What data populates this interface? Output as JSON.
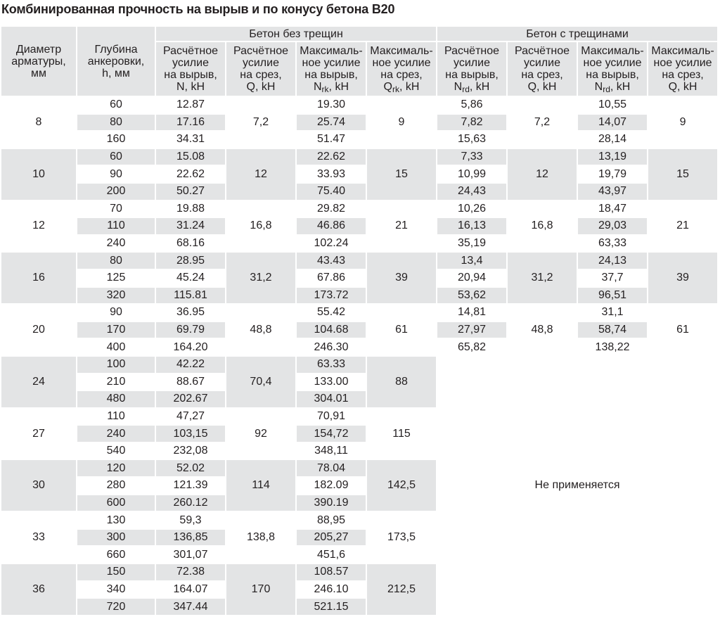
{
  "title": "Комбинированная прочность на вырыв и по конусу бетона B20",
  "group_headers": {
    "no_cracks": "Бетон без трещин",
    "cracks": "Бетон с трещинами"
  },
  "columns": [
    {
      "lines": [
        "Диаметр",
        "арматуры,",
        "мм"
      ]
    },
    {
      "lines": [
        "Глубина",
        "анкеровки,",
        "h, мм"
      ]
    },
    {
      "lines": [
        "Расчётное",
        "усилие",
        "на вырыв,"
      ],
      "sym": "N",
      "sub": "",
      "unit": ", kH"
    },
    {
      "lines": [
        "Расчётное",
        "усилие",
        "на срез,"
      ],
      "sym": "Q",
      "sub": "",
      "unit": ", kH"
    },
    {
      "lines": [
        "Максималь-",
        "ное усилие",
        "на вырыв,"
      ],
      "sym": "N",
      "sub": "rk",
      "unit": ", kH"
    },
    {
      "lines": [
        "Максималь-",
        "ное усилие",
        "на срез,"
      ],
      "sym": "Q",
      "sub": "rk",
      "unit": ", kH"
    },
    {
      "lines": [
        "Расчётное",
        "усилие",
        "на вырыв,"
      ],
      "sym": "N",
      "sub": "rd",
      "unit": ", kH"
    },
    {
      "lines": [
        "Расчётное",
        "усилие",
        "на срез,"
      ],
      "sym": "Q",
      "sub": "",
      "unit": ", kH"
    },
    {
      "lines": [
        "Максималь-",
        "ное усилие",
        "на вырыв,"
      ],
      "sym": "N",
      "sub": "rd",
      "unit": ", kH"
    },
    {
      "lines": [
        "Максималь-",
        "ное усилие",
        "на срез,"
      ],
      "sym": "Q",
      "sub": "",
      "unit": ", kH"
    }
  ],
  "not_applicable": "Не применяется",
  "groups": [
    {
      "d": "8",
      "Q": "7,2",
      "Qrk": "9",
      "Qc": "7,2",
      "Qcm": "9",
      "rows": [
        {
          "h": "60",
          "N": "12.87",
          "Nrk": "19.30",
          "Nrd": "5,86",
          "Nrdm": "10,55"
        },
        {
          "h": "80",
          "N": "17.16",
          "Nrk": "25.74",
          "Nrd": "7,82",
          "Nrdm": "14,07"
        },
        {
          "h": "160",
          "N": "34.31",
          "Nrk": "51.47",
          "Nrd": "15,63",
          "Nrdm": "28,14"
        }
      ]
    },
    {
      "d": "10",
      "Q": "12",
      "Qrk": "15",
      "Qc": "12",
      "Qcm": "15",
      "rows": [
        {
          "h": "60",
          "N": "15.08",
          "Nrk": "22.62",
          "Nrd": "7,33",
          "Nrdm": "13,19"
        },
        {
          "h": "90",
          "N": "22.62",
          "Nrk": "33.93",
          "Nrd": "10,99",
          "Nrdm": "19,79"
        },
        {
          "h": "200",
          "N": "50.27",
          "Nrk": "75.40",
          "Nrd": "24,43",
          "Nrdm": "43,97"
        }
      ]
    },
    {
      "d": "12",
      "Q": "16,8",
      "Qrk": "21",
      "Qc": "16,8",
      "Qcm": "21",
      "rows": [
        {
          "h": "70",
          "N": "19.88",
          "Nrk": "29.82",
          "Nrd": "10,26",
          "Nrdm": "18,47"
        },
        {
          "h": "110",
          "N": "31.24",
          "Nrk": "46.86",
          "Nrd": "16,13",
          "Nrdm": "29,03"
        },
        {
          "h": "240",
          "N": "68.16",
          "Nrk": "102.24",
          "Nrd": "35,19",
          "Nrdm": "63,33"
        }
      ]
    },
    {
      "d": "16",
      "Q": "31,2",
      "Qrk": "39",
      "Qc": "31,2",
      "Qcm": "39",
      "rows": [
        {
          "h": "80",
          "N": "28.95",
          "Nrk": "43.43",
          "Nrd": "13,4",
          "Nrdm": "24,13"
        },
        {
          "h": "125",
          "N": "45.24",
          "Nrk": "67.86",
          "Nrd": "20,94",
          "Nrdm": "37,7"
        },
        {
          "h": "320",
          "N": "115.81",
          "Nrk": "173.72",
          "Nrd": "53,62",
          "Nrdm": "96,51"
        }
      ]
    },
    {
      "d": "20",
      "Q": "48,8",
      "Qrk": "61",
      "Qc": "48,8",
      "Qcm": "61",
      "rows": [
        {
          "h": "90",
          "N": "36.95",
          "Nrk": "55.42",
          "Nrd": "14,81",
          "Nrdm": "31,1"
        },
        {
          "h": "170",
          "N": "69.79",
          "Nrk": "104.68",
          "Nrd": "27,97",
          "Nrdm": "58,74"
        },
        {
          "h": "400",
          "N": "164.20",
          "Nrk": "246.30",
          "Nrd": "65,82",
          "Nrdm": "138,22"
        }
      ]
    },
    {
      "d": "24",
      "Q": "70,4",
      "Qrk": "88",
      "rows": [
        {
          "h": "100",
          "N": "42.22",
          "Nrk": "63.33"
        },
        {
          "h": "210",
          "N": "88.67",
          "Nrk": "133.00"
        },
        {
          "h": "480",
          "N": "202.67",
          "Nrk": "304.01"
        }
      ]
    },
    {
      "d": "27",
      "Q": "92",
      "Qrk": "115",
      "rows": [
        {
          "h": "110",
          "N": "47,27",
          "Nrk": "70,91"
        },
        {
          "h": "240",
          "N": "103,15",
          "Nrk": "154,72"
        },
        {
          "h": "540",
          "N": "232,08",
          "Nrk": "348,11"
        }
      ]
    },
    {
      "d": "30",
      "Q": "114",
      "Qrk": "142,5",
      "rows": [
        {
          "h": "120",
          "N": "52.02",
          "Nrk": "78.04"
        },
        {
          "h": "280",
          "N": "121.39",
          "Nrk": "182.09"
        },
        {
          "h": "600",
          "N": "260.12",
          "Nrk": "390.19"
        }
      ]
    },
    {
      "d": "33",
      "Q": "138,8",
      "Qrk": "173,5",
      "rows": [
        {
          "h": "130",
          "N": "59,3",
          "Nrk": "88,95"
        },
        {
          "h": "300",
          "N": "136,85",
          "Nrk": "205,27"
        },
        {
          "h": "660",
          "N": "301,07",
          "Nrk": "451,6"
        }
      ]
    },
    {
      "d": "36",
      "Q": "170",
      "Qrk": "212,5",
      "rows": [
        {
          "h": "150",
          "N": "72.38",
          "Nrk": "108.57"
        },
        {
          "h": "340",
          "N": "164.07",
          "Nrk": "246.10"
        },
        {
          "h": "720",
          "N": "347.44",
          "Nrk": "521.15"
        }
      ]
    }
  ]
}
